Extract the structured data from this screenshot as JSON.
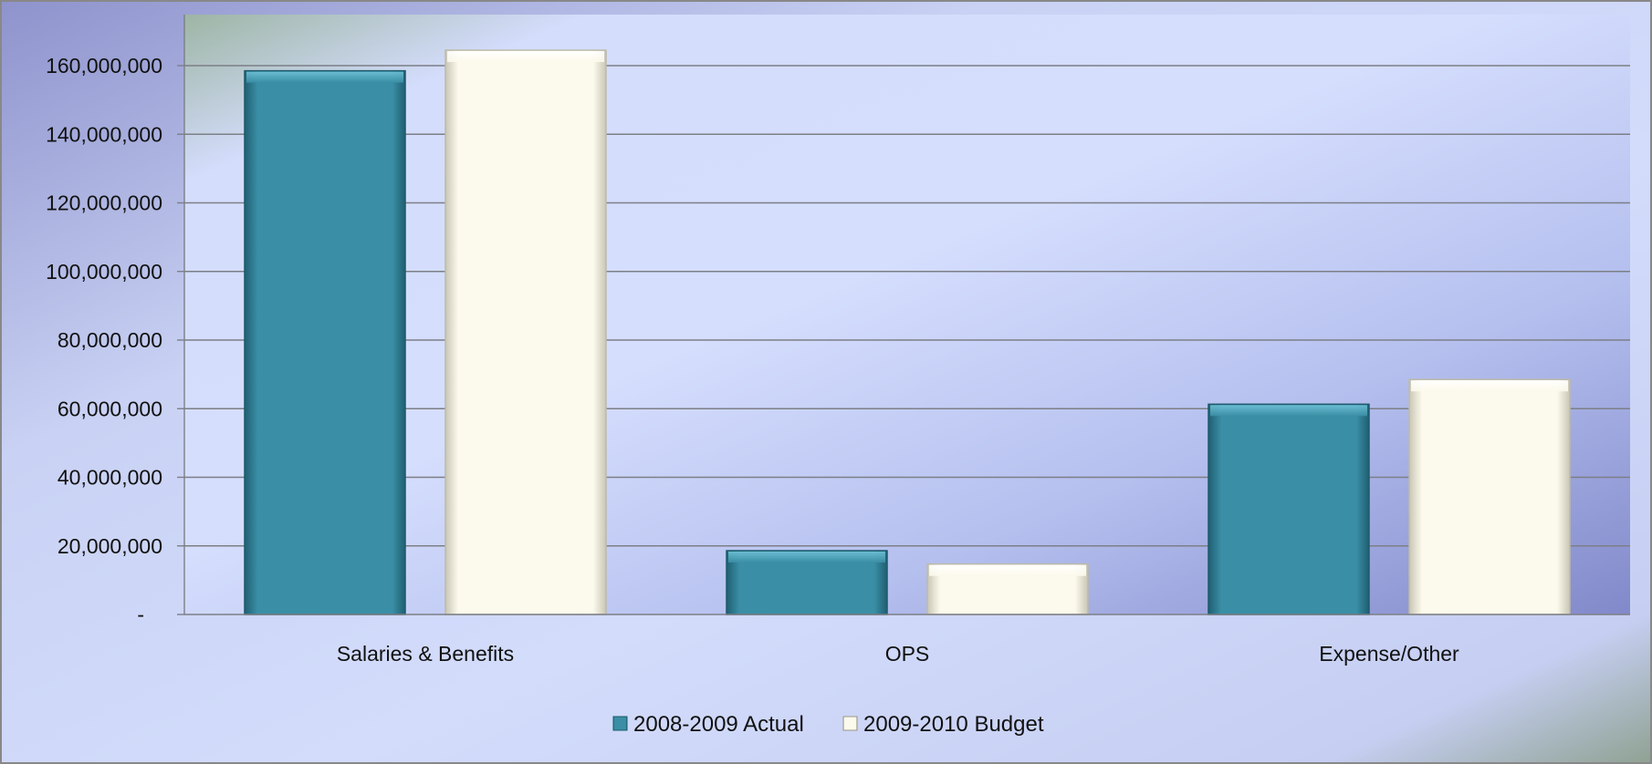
{
  "chart_data": {
    "type": "bar",
    "title": "",
    "xlabel": "",
    "ylabel": "",
    "categories": [
      "Salaries & Benefits",
      "OPS",
      "Expense/Other"
    ],
    "series": [
      {
        "name": "2008-2009 Actual",
        "values": [
          158500000,
          18600000,
          61300000
        ],
        "color": "#3a8ea5"
      },
      {
        "name": "2009-2010 Budget",
        "values": [
          164500000,
          14700000,
          68500000
        ],
        "color": "#fcfaec"
      }
    ],
    "ylim": [
      0,
      170000000
    ],
    "yticks": [
      0,
      20000000,
      40000000,
      60000000,
      80000000,
      100000000,
      120000000,
      140000000,
      160000000
    ],
    "ytick_labels": [
      "-",
      "20,000,000",
      "40,000,000",
      "60,000,000",
      "80,000,000",
      "100,000,000",
      "120,000,000",
      "140,000,000",
      "160,000,000"
    ],
    "grid": true,
    "legend_position": "bottom"
  }
}
